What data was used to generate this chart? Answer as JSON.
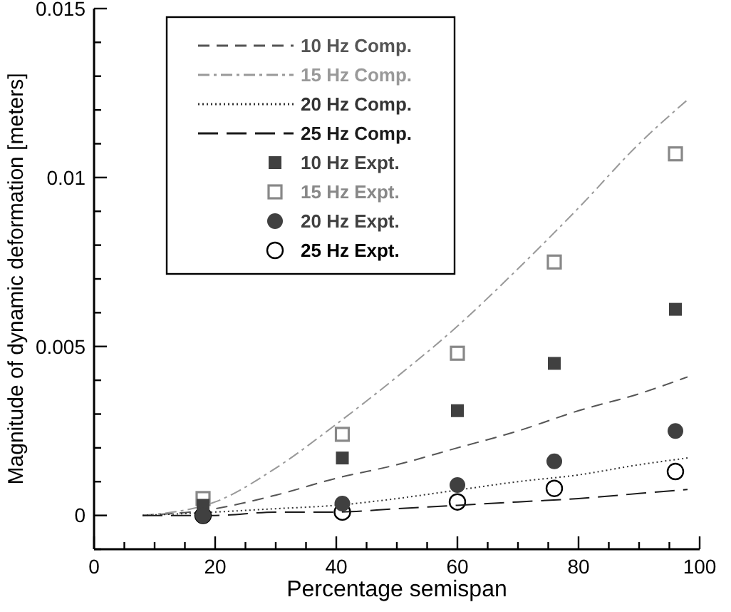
{
  "chart_data": {
    "type": "line",
    "xlabel": "Percentage semispan",
    "ylabel": "Magnitude of dynamic deformation [meters]",
    "xlim": [
      0,
      100
    ],
    "ylim": [
      -0.001,
      0.015
    ],
    "xticks": [
      0,
      {
        "value": 5,
        "label": null
      },
      {
        "value": 10,
        "label": null
      },
      {
        "value": 15,
        "label": null
      },
      20,
      {
        "value": 25,
        "label": null
      },
      {
        "value": 30,
        "label": null
      },
      {
        "value": 35,
        "label": null
      },
      40,
      {
        "value": 45,
        "label": null
      },
      {
        "value": 50,
        "label": null
      },
      {
        "value": 55,
        "label": null
      },
      60,
      {
        "value": 65,
        "label": null
      },
      {
        "value": 70,
        "label": null
      },
      {
        "value": 75,
        "label": null
      },
      80,
      {
        "value": 85,
        "label": null
      },
      {
        "value": 90,
        "label": null
      },
      {
        "value": 95,
        "label": null
      },
      100
    ],
    "yticks": [
      {
        "value": -0.001,
        "label": null
      },
      0,
      {
        "value": 0.001,
        "label": null
      },
      {
        "value": 0.002,
        "label": null
      },
      {
        "value": 0.003,
        "label": null
      },
      {
        "value": 0.004,
        "label": null
      },
      0.005,
      {
        "value": 0.006,
        "label": null
      },
      {
        "value": 0.007,
        "label": null
      },
      {
        "value": 0.008,
        "label": null
      },
      {
        "value": 0.009,
        "label": null
      },
      0.01,
      {
        "value": 0.011,
        "label": null
      },
      {
        "value": 0.012,
        "label": null
      },
      {
        "value": 0.013,
        "label": null
      },
      {
        "value": 0.014,
        "label": null
      },
      0.015
    ],
    "grid": false,
    "legend": "top left",
    "series": [
      {
        "name": "10 Hz Comp.",
        "line_style": "dashed",
        "color": "#555555",
        "x": [
          8,
          20,
          30,
          40,
          50,
          60,
          70,
          80,
          90,
          98
        ],
        "values": [
          0,
          0.0002,
          0.0006,
          0.0011,
          0.0015,
          0.002,
          0.0025,
          0.0031,
          0.0036,
          0.0041
        ]
      },
      {
        "name": "15 Hz Comp.",
        "line_style": "dashdot",
        "color": "#999999",
        "x": [
          8,
          20,
          30,
          40,
          50,
          60,
          70,
          80,
          90,
          98
        ],
        "values": [
          0,
          0.0004,
          0.0014,
          0.0027,
          0.0041,
          0.0056,
          0.0073,
          0.0091,
          0.011,
          0.0123
        ]
      },
      {
        "name": "20 Hz Comp.",
        "line_style": "dotted",
        "color": "#333333",
        "x": [
          8,
          20,
          30,
          40,
          50,
          60,
          70,
          80,
          90,
          98
        ],
        "values": [
          0,
          0.0001,
          0.0002,
          0.0003,
          0.0005,
          0.00075,
          0.001,
          0.0012,
          0.0015,
          0.0017
        ]
      },
      {
        "name": "25 Hz Comp.",
        "line_style": "longdash",
        "color": "#1a1a1a",
        "x": [
          8,
          20,
          30,
          40,
          50,
          60,
          70,
          80,
          90,
          98
        ],
        "values": [
          0,
          0,
          0.0001,
          0.0001,
          0.0002,
          0.0003,
          0.0004,
          0.0005,
          0.00065,
          0.00077
        ]
      },
      {
        "name": "10 Hz Expt.",
        "type": "scatter",
        "marker": "square",
        "color": "#404040",
        "x": [
          18,
          41,
          60,
          76,
          96
        ],
        "values": [
          0.0003,
          0.0017,
          0.0031,
          0.0045,
          0.0061
        ]
      },
      {
        "name": "15 Hz Expt.",
        "type": "scatter",
        "marker": "square_open",
        "color": "#888888",
        "x": [
          18,
          41,
          60,
          76,
          96
        ],
        "values": [
          0.0005,
          0.0024,
          0.0048,
          0.0075,
          0.0107
        ]
      },
      {
        "name": "20 Hz Expt.",
        "type": "scatter",
        "marker": "circle",
        "color": "#404040",
        "x": [
          18,
          41,
          60,
          76,
          96
        ],
        "values": [
          0,
          0.00035,
          0.0009,
          0.0016,
          0.0025
        ]
      },
      {
        "name": "25 Hz Expt.",
        "type": "scatter",
        "marker": "circle_open",
        "color": "#000000",
        "x": [
          18,
          41,
          60,
          76,
          96
        ],
        "values": [
          0,
          0.0001,
          0.0004,
          0.0008,
          0.0013
        ]
      }
    ]
  }
}
